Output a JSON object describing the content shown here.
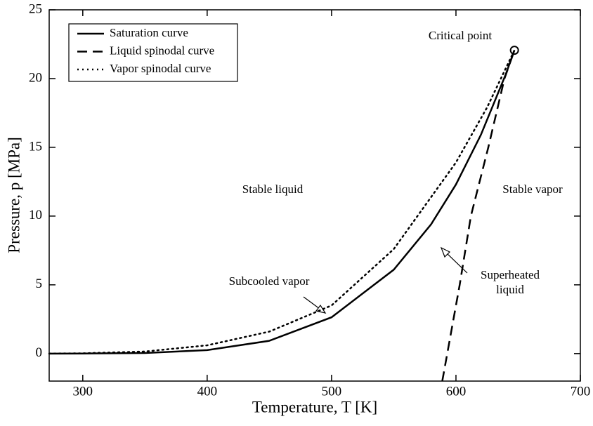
{
  "chart_data": {
    "type": "line",
    "xlabel": "Temperature, T   [K]",
    "ylabel": "Pressure, p   [MPa]",
    "xlim": [
      273,
      700
    ],
    "ylim": [
      -2,
      25
    ],
    "xticks": [
      300,
      400,
      500,
      600,
      700
    ],
    "yticks": [
      0,
      5,
      10,
      15,
      20,
      25
    ],
    "legend": "upper left",
    "series": [
      {
        "name": "Saturation curve",
        "color": "#000000",
        "dash": "solid",
        "x": [
          273,
          300,
          350,
          400,
          450,
          500,
          550,
          580,
          600,
          620,
          640,
          647
        ],
        "values": [
          0.0,
          0.0035,
          0.042,
          0.25,
          0.93,
          2.64,
          6.1,
          9.4,
          12.3,
          15.9,
          20.3,
          22.06
        ]
      },
      {
        "name": "Liquid spinodal curve",
        "color": "#000000",
        "dash": "dashed",
        "x": [
          589,
          593,
          603,
          612,
          626,
          639,
          647
        ],
        "values": [
          -2,
          0,
          5,
          10,
          15,
          20,
          22.06
        ]
      },
      {
        "name": "Vapor  spinodal curve",
        "color": "#000000",
        "dash": "dotted",
        "x": [
          273,
          300,
          350,
          400,
          450,
          500,
          550,
          600,
          625,
          647
        ],
        "values": [
          0.0,
          0.02,
          0.15,
          0.6,
          1.6,
          3.5,
          7.6,
          13.9,
          17.9,
          22.06
        ]
      }
    ],
    "critical_point": {
      "label": "Critical point",
      "x": 647,
      "y": 22.06
    },
    "annotations": [
      "Stable liquid",
      "Stable vapor",
      "Subcooled vapor",
      "Superheated",
      "liquid"
    ]
  }
}
